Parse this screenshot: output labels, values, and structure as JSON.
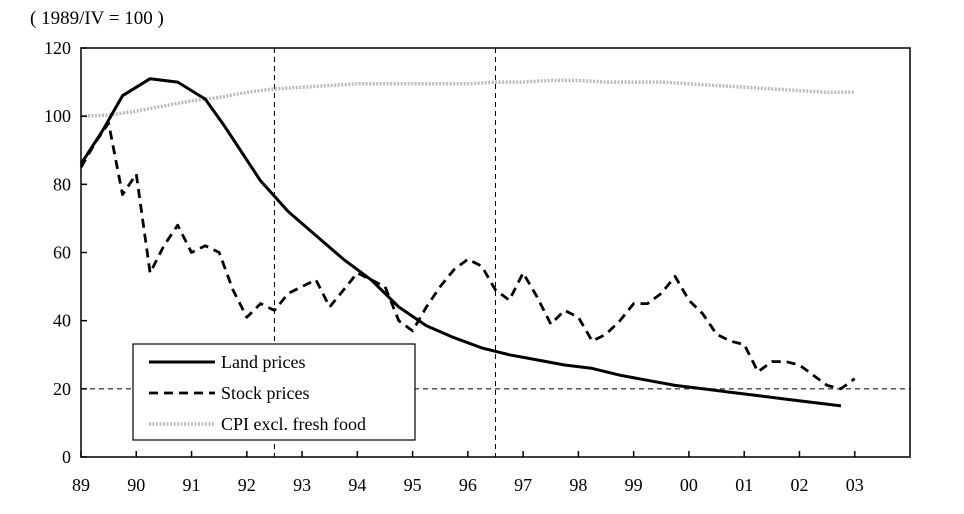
{
  "chart_data": {
    "type": "line",
    "unit_note": "( 1989/IV = 100 )",
    "x_tick_labels": [
      "89",
      "90",
      "91",
      "92",
      "93",
      "94",
      "95",
      "96",
      "97",
      "98",
      "99",
      "00",
      "01",
      "02",
      "03"
    ],
    "x_range": [
      1989.0,
      2004.0
    ],
    "ylim": [
      0,
      120
    ],
    "y_ticks": [
      0,
      20,
      40,
      60,
      80,
      100,
      120
    ],
    "reference_lines": {
      "horizontal": [
        20
      ],
      "vertical_x": [
        1992.5,
        1996.5
      ]
    },
    "legend_position": "bottom-left",
    "series": [
      {
        "name": "Land prices",
        "style": "solid-thick",
        "color": "#000000",
        "points": [
          [
            1989.0,
            86
          ],
          [
            1989.4,
            96
          ],
          [
            1989.75,
            106
          ],
          [
            1990.25,
            111
          ],
          [
            1990.75,
            110
          ],
          [
            1991.25,
            105
          ],
          [
            1991.6,
            97
          ],
          [
            1992.25,
            81
          ],
          [
            1992.75,
            72
          ],
          [
            1993.25,
            65
          ],
          [
            1993.75,
            58
          ],
          [
            1994.25,
            52
          ],
          [
            1994.75,
            44
          ],
          [
            1995.25,
            38.5
          ],
          [
            1995.75,
            35
          ],
          [
            1996.25,
            32
          ],
          [
            1996.75,
            30
          ],
          [
            1997.25,
            28.5
          ],
          [
            1997.75,
            27
          ],
          [
            1998.25,
            26
          ],
          [
            1998.75,
            24
          ],
          [
            1999.25,
            22.5
          ],
          [
            1999.75,
            21
          ],
          [
            2000.25,
            20
          ],
          [
            2000.75,
            19
          ],
          [
            2001.25,
            18
          ],
          [
            2001.75,
            17
          ],
          [
            2002.25,
            16
          ],
          [
            2002.75,
            15
          ]
        ]
      },
      {
        "name": "Stock prices",
        "style": "dashed",
        "color": "#000000",
        "points": [
          [
            1989.0,
            85
          ],
          [
            1989.25,
            92
          ],
          [
            1989.5,
            98
          ],
          [
            1989.75,
            77
          ],
          [
            1990.0,
            83
          ],
          [
            1990.25,
            54
          ],
          [
            1990.5,
            62
          ],
          [
            1990.75,
            68
          ],
          [
            1991.0,
            60
          ],
          [
            1991.25,
            62
          ],
          [
            1991.5,
            60
          ],
          [
            1991.75,
            49
          ],
          [
            1992.0,
            41
          ],
          [
            1992.25,
            45
          ],
          [
            1992.5,
            43
          ],
          [
            1992.75,
            48
          ],
          [
            1993.0,
            50
          ],
          [
            1993.25,
            52
          ],
          [
            1993.5,
            44
          ],
          [
            1993.75,
            49
          ],
          [
            1994.0,
            54
          ],
          [
            1994.25,
            52
          ],
          [
            1994.5,
            50
          ],
          [
            1994.75,
            40
          ],
          [
            1995.0,
            37
          ],
          [
            1995.25,
            44
          ],
          [
            1995.5,
            50
          ],
          [
            1995.75,
            55
          ],
          [
            1996.0,
            58
          ],
          [
            1996.25,
            56
          ],
          [
            1996.5,
            49
          ],
          [
            1996.75,
            46
          ],
          [
            1997.0,
            54
          ],
          [
            1997.25,
            47
          ],
          [
            1997.5,
            39
          ],
          [
            1997.75,
            43
          ],
          [
            1998.0,
            41
          ],
          [
            1998.25,
            34
          ],
          [
            1998.5,
            36
          ],
          [
            1998.75,
            40
          ],
          [
            1999.0,
            45
          ],
          [
            1999.25,
            45
          ],
          [
            1999.5,
            48
          ],
          [
            1999.75,
            53
          ],
          [
            2000.0,
            46
          ],
          [
            2000.25,
            42
          ],
          [
            2000.5,
            36
          ],
          [
            2000.75,
            34
          ],
          [
            2001.0,
            33
          ],
          [
            2001.25,
            25
          ],
          [
            2001.5,
            28
          ],
          [
            2001.75,
            28
          ],
          [
            2002.0,
            27
          ],
          [
            2002.25,
            24
          ],
          [
            2002.5,
            21
          ],
          [
            2002.75,
            20
          ],
          [
            2003.0,
            23
          ]
        ]
      },
      {
        "name": "CPI excl. fresh food",
        "style": "dotted-gray",
        "color": "#bbbbbb",
        "points": [
          [
            1989.0,
            100
          ],
          [
            1989.5,
            100.3
          ],
          [
            1990.0,
            101.5
          ],
          [
            1990.5,
            103
          ],
          [
            1991.0,
            104.5
          ],
          [
            1991.5,
            105.5
          ],
          [
            1992.0,
            107
          ],
          [
            1992.5,
            108
          ],
          [
            1993.0,
            108.5
          ],
          [
            1993.5,
            109
          ],
          [
            1994.0,
            109.5
          ],
          [
            1994.5,
            109.5
          ],
          [
            1995.0,
            109.5
          ],
          [
            1995.5,
            109.5
          ],
          [
            1996.0,
            109.5
          ],
          [
            1996.5,
            110
          ],
          [
            1997.0,
            110
          ],
          [
            1997.5,
            110.5
          ],
          [
            1998.0,
            110.5
          ],
          [
            1998.5,
            110
          ],
          [
            1999.0,
            110
          ],
          [
            1999.5,
            110
          ],
          [
            2000.0,
            109.5
          ],
          [
            2000.5,
            109
          ],
          [
            2001.0,
            108.5
          ],
          [
            2001.5,
            108
          ],
          [
            2002.0,
            107.5
          ],
          [
            2002.5,
            107
          ],
          [
            2003.0,
            107
          ]
        ]
      }
    ]
  }
}
